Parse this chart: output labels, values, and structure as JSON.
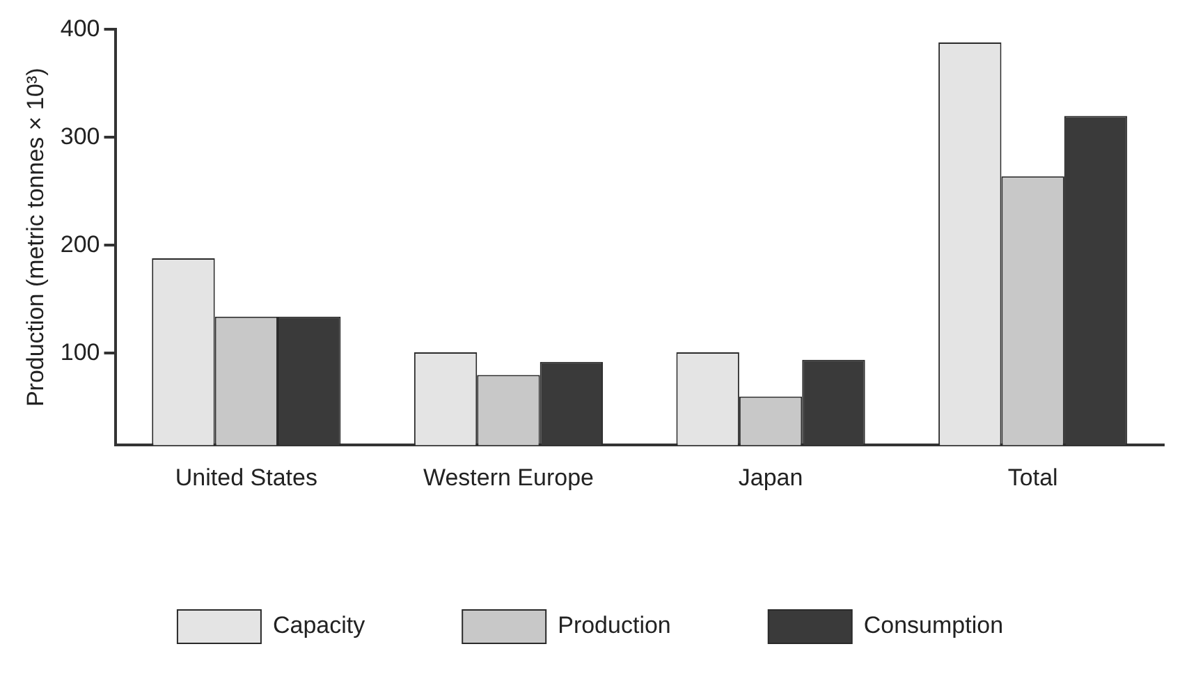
{
  "chart_data": {
    "type": "bar",
    "ylabel": "Production (metric tonnes × 10³)",
    "categories": [
      "United States",
      "Western Europe",
      "Japan",
      "Total"
    ],
    "series": [
      {
        "name": "Capacity",
        "color": "#e4e4e4",
        "values": [
          188,
          101,
          101,
          388
        ]
      },
      {
        "name": "Production",
        "color": "#c8c8c8",
        "values": [
          134,
          80,
          60,
          264
        ]
      },
      {
        "name": "Consumption",
        "color": "#3a3a3a",
        "values": [
          134,
          92,
          94,
          320
        ]
      }
    ],
    "ylim": [
      15,
      400
    ],
    "yticks": [
      100,
      200,
      300,
      400
    ],
    "grid": false,
    "legend": "bottom"
  }
}
